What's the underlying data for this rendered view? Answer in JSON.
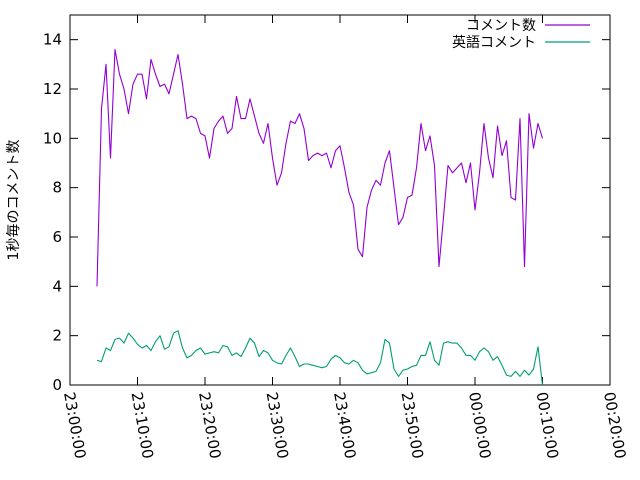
{
  "chart_data": {
    "type": "line",
    "title": "",
    "xlabel": "",
    "ylabel": "1秒毎のコメント数",
    "xlim": [
      "23:00:00",
      "00:20:00"
    ],
    "ylim": [
      0,
      15
    ],
    "grid": false,
    "legend_position": "top-right",
    "x_ticks": [
      "23:00:00",
      "23:10:00",
      "23:20:00",
      "23:30:00",
      "23:40:00",
      "23:50:00",
      "00:00:00",
      "00:10:00",
      "00:20:00"
    ],
    "y_ticks": [
      0,
      2,
      4,
      6,
      8,
      10,
      12,
      14
    ],
    "series": [
      {
        "name": "コメント数",
        "color": "#9400d3",
        "points": [
          [
            "23:04:00",
            4.0
          ],
          [
            "23:04:40",
            11.2
          ],
          [
            "23:05:20",
            13.0
          ],
          [
            "23:06:00",
            9.2
          ],
          [
            "23:06:40",
            13.6
          ],
          [
            "23:07:20",
            12.6
          ],
          [
            "23:08:00",
            12.0
          ],
          [
            "23:08:40",
            11.0
          ],
          [
            "23:09:20",
            12.2
          ],
          [
            "23:10:00",
            12.6
          ],
          [
            "23:10:40",
            12.6
          ],
          [
            "23:11:20",
            11.6
          ],
          [
            "23:12:00",
            13.2
          ],
          [
            "23:12:40",
            12.6
          ],
          [
            "23:13:20",
            12.1
          ],
          [
            "23:14:00",
            12.2
          ],
          [
            "23:14:40",
            11.8
          ],
          [
            "23:15:20",
            12.6
          ],
          [
            "23:16:00",
            13.4
          ],
          [
            "23:16:40",
            12.2
          ],
          [
            "23:17:20",
            10.8
          ],
          [
            "23:18:00",
            10.9
          ],
          [
            "23:18:40",
            10.8
          ],
          [
            "23:19:20",
            10.2
          ],
          [
            "23:20:00",
            10.1
          ],
          [
            "23:20:40",
            9.2
          ],
          [
            "23:21:20",
            10.4
          ],
          [
            "23:22:00",
            10.7
          ],
          [
            "23:22:40",
            10.9
          ],
          [
            "23:23:20",
            10.2
          ],
          [
            "23:24:00",
            10.4
          ],
          [
            "23:24:40",
            11.7
          ],
          [
            "23:25:20",
            10.8
          ],
          [
            "23:26:00",
            10.8
          ],
          [
            "23:26:40",
            11.6
          ],
          [
            "23:27:20",
            10.9
          ],
          [
            "23:28:00",
            10.2
          ],
          [
            "23:28:40",
            9.8
          ],
          [
            "23:29:20",
            10.6
          ],
          [
            "23:30:00",
            9.2
          ],
          [
            "23:30:40",
            8.1
          ],
          [
            "23:31:20",
            8.6
          ],
          [
            "23:32:00",
            9.8
          ],
          [
            "23:32:40",
            10.7
          ],
          [
            "23:33:20",
            10.6
          ],
          [
            "23:34:00",
            11.0
          ],
          [
            "23:34:40",
            10.4
          ],
          [
            "23:35:20",
            9.1
          ],
          [
            "23:36:00",
            9.3
          ],
          [
            "23:36:40",
            9.4
          ],
          [
            "23:37:20",
            9.3
          ],
          [
            "23:38:00",
            9.4
          ],
          [
            "23:38:40",
            8.8
          ],
          [
            "23:39:20",
            9.5
          ],
          [
            "23:40:00",
            9.7
          ],
          [
            "23:40:40",
            8.8
          ],
          [
            "23:41:20",
            7.8
          ],
          [
            "23:42:00",
            7.3
          ],
          [
            "23:42:40",
            5.5
          ],
          [
            "23:43:20",
            5.2
          ],
          [
            "23:44:00",
            7.2
          ],
          [
            "23:44:40",
            7.9
          ],
          [
            "23:45:20",
            8.3
          ],
          [
            "23:46:00",
            8.1
          ],
          [
            "23:46:40",
            9.0
          ],
          [
            "23:47:20",
            9.5
          ],
          [
            "23:48:00",
            8.0
          ],
          [
            "23:48:40",
            6.5
          ],
          [
            "23:49:20",
            6.8
          ],
          [
            "23:50:00",
            7.6
          ],
          [
            "23:50:40",
            7.7
          ],
          [
            "23:51:20",
            8.8
          ],
          [
            "23:52:00",
            10.6
          ],
          [
            "23:52:40",
            9.5
          ],
          [
            "23:53:20",
            10.1
          ],
          [
            "23:54:00",
            8.9
          ],
          [
            "23:54:40",
            4.8
          ],
          [
            "23:55:20",
            6.8
          ],
          [
            "23:56:00",
            8.9
          ],
          [
            "23:56:40",
            8.6
          ],
          [
            "23:57:20",
            8.8
          ],
          [
            "23:58:00",
            9.0
          ],
          [
            "23:58:40",
            8.2
          ],
          [
            "23:59:20",
            9.0
          ],
          [
            "00:00:00",
            7.1
          ],
          [
            "00:00:40",
            8.6
          ],
          [
            "00:01:20",
            10.6
          ],
          [
            "00:02:00",
            9.2
          ],
          [
            "00:02:40",
            8.4
          ],
          [
            "00:03:20",
            10.5
          ],
          [
            "00:04:00",
            9.3
          ],
          [
            "00:04:40",
            9.9
          ],
          [
            "00:05:20",
            7.6
          ],
          [
            "00:06:00",
            7.5
          ],
          [
            "00:06:40",
            10.8
          ],
          [
            "00:07:20",
            4.8
          ],
          [
            "00:08:00",
            11.0
          ],
          [
            "00:08:40",
            9.6
          ],
          [
            "00:09:20",
            10.6
          ],
          [
            "00:10:00",
            10.0
          ]
        ]
      },
      {
        "name": "英語コメント",
        "color": "#009e73",
        "points": [
          [
            "23:04:00",
            1.0
          ],
          [
            "23:04:40",
            0.95
          ],
          [
            "23:05:20",
            1.5
          ],
          [
            "23:06:00",
            1.4
          ],
          [
            "23:06:40",
            1.85
          ],
          [
            "23:07:20",
            1.9
          ],
          [
            "23:08:00",
            1.7
          ],
          [
            "23:08:40",
            2.1
          ],
          [
            "23:09:20",
            1.9
          ],
          [
            "23:10:00",
            1.65
          ],
          [
            "23:10:40",
            1.5
          ],
          [
            "23:11:20",
            1.6
          ],
          [
            "23:12:00",
            1.4
          ],
          [
            "23:12:40",
            1.75
          ],
          [
            "23:13:20",
            2.0
          ],
          [
            "23:14:00",
            1.45
          ],
          [
            "23:14:40",
            1.55
          ],
          [
            "23:15:20",
            2.1
          ],
          [
            "23:16:00",
            2.2
          ],
          [
            "23:16:40",
            1.5
          ],
          [
            "23:17:20",
            1.1
          ],
          [
            "23:18:00",
            1.2
          ],
          [
            "23:18:40",
            1.4
          ],
          [
            "23:19:20",
            1.5
          ],
          [
            "23:20:00",
            1.25
          ],
          [
            "23:20:40",
            1.3
          ],
          [
            "23:21:20",
            1.35
          ],
          [
            "23:22:00",
            1.3
          ],
          [
            "23:22:40",
            1.6
          ],
          [
            "23:23:20",
            1.55
          ],
          [
            "23:24:00",
            1.2
          ],
          [
            "23:24:40",
            1.3
          ],
          [
            "23:25:20",
            1.15
          ],
          [
            "23:26:00",
            1.5
          ],
          [
            "23:26:40",
            1.9
          ],
          [
            "23:27:20",
            1.7
          ],
          [
            "23:28:00",
            1.15
          ],
          [
            "23:28:40",
            1.4
          ],
          [
            "23:29:20",
            1.3
          ],
          [
            "23:30:00",
            1.0
          ],
          [
            "23:30:40",
            0.9
          ],
          [
            "23:31:20",
            0.85
          ],
          [
            "23:32:00",
            1.2
          ],
          [
            "23:32:40",
            1.5
          ],
          [
            "23:33:20",
            1.15
          ],
          [
            "23:34:00",
            0.75
          ],
          [
            "23:34:40",
            0.85
          ],
          [
            "23:35:20",
            0.85
          ],
          [
            "23:36:00",
            0.8
          ],
          [
            "23:36:40",
            0.75
          ],
          [
            "23:37:20",
            0.7
          ],
          [
            "23:38:00",
            0.75
          ],
          [
            "23:38:40",
            1.05
          ],
          [
            "23:39:20",
            1.2
          ],
          [
            "23:40:00",
            1.1
          ],
          [
            "23:40:40",
            0.9
          ],
          [
            "23:41:20",
            0.85
          ],
          [
            "23:42:00",
            1.0
          ],
          [
            "23:42:40",
            0.9
          ],
          [
            "23:43:20",
            0.6
          ],
          [
            "23:44:00",
            0.45
          ],
          [
            "23:44:40",
            0.5
          ],
          [
            "23:45:20",
            0.55
          ],
          [
            "23:46:00",
            0.9
          ],
          [
            "23:46:40",
            1.85
          ],
          [
            "23:47:20",
            1.7
          ],
          [
            "23:48:00",
            0.65
          ],
          [
            "23:48:40",
            0.35
          ],
          [
            "23:49:20",
            0.6
          ],
          [
            "23:50:00",
            0.65
          ],
          [
            "23:50:40",
            0.75
          ],
          [
            "23:51:20",
            0.8
          ],
          [
            "23:52:00",
            1.2
          ],
          [
            "23:52:40",
            1.2
          ],
          [
            "23:53:20",
            1.75
          ],
          [
            "23:54:00",
            1.0
          ],
          [
            "23:54:40",
            0.8
          ],
          [
            "23:55:20",
            1.7
          ],
          [
            "23:56:00",
            1.75
          ],
          [
            "23:56:40",
            1.7
          ],
          [
            "23:57:20",
            1.7
          ],
          [
            "23:58:00",
            1.5
          ],
          [
            "23:58:40",
            1.2
          ],
          [
            "23:59:20",
            1.2
          ],
          [
            "00:00:00",
            1.0
          ],
          [
            "00:00:40",
            1.35
          ],
          [
            "00:01:20",
            1.5
          ],
          [
            "00:02:00",
            1.35
          ],
          [
            "00:02:40",
            1.0
          ],
          [
            "00:03:20",
            1.15
          ],
          [
            "00:04:00",
            0.8
          ],
          [
            "00:04:40",
            0.4
          ],
          [
            "00:05:20",
            0.35
          ],
          [
            "00:06:00",
            0.55
          ],
          [
            "00:06:40",
            0.35
          ],
          [
            "00:07:20",
            0.6
          ],
          [
            "00:08:00",
            0.4
          ],
          [
            "00:08:40",
            0.65
          ],
          [
            "00:09:20",
            1.55
          ],
          [
            "00:10:00",
            0.0
          ]
        ]
      }
    ]
  }
}
